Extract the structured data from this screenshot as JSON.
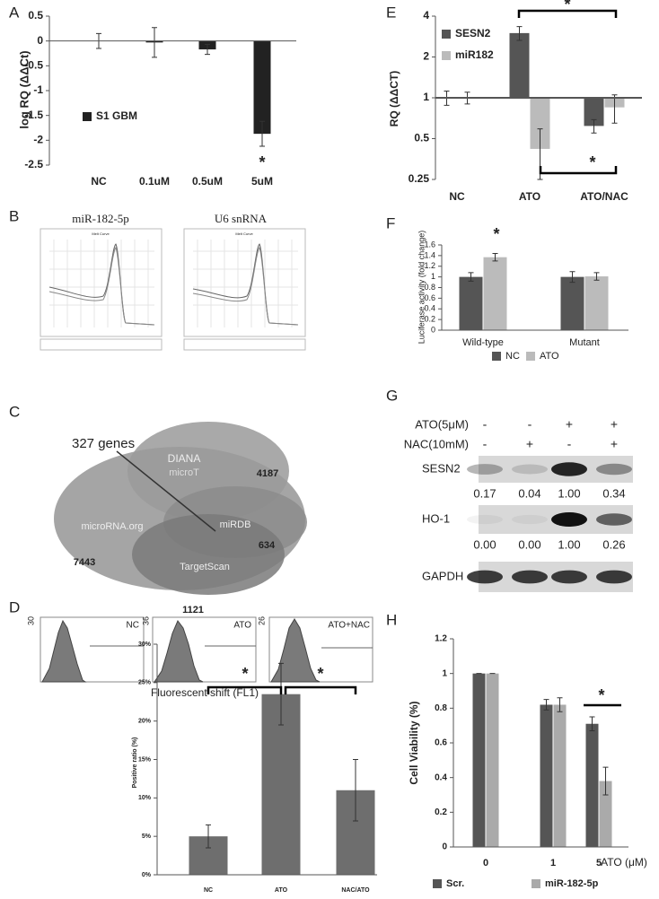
{
  "chart_data": [
    {
      "panel": "A",
      "type": "bar",
      "y_label": "log RQ (ΔΔCt)",
      "categories": [
        "NC",
        "0.1uM",
        "0.5uM",
        "5uM"
      ],
      "series": [
        {
          "name": "S1 GBM",
          "color": "#222222",
          "values": [
            0,
            -0.03,
            -0.17,
            -1.87
          ],
          "errors": [
            0.15,
            0.3,
            0.1,
            0.25
          ]
        }
      ],
      "ylim": [
        -2.5,
        0.5
      ],
      "yticks": [
        -2.5,
        -2,
        -1.5,
        -1,
        -0.5,
        0,
        0.5
      ],
      "annotations": [
        "*"
      ]
    },
    {
      "type": "bar",
      "y_label": "Positive ratio (%)",
      "categories": [
        "NC",
        "ATO",
        "NAC/ATO"
      ],
      "series": [
        {
          "color": "#6e6e6e",
          "values": [
            5,
            23.5,
            11
          ],
          "errors": [
            1.5,
            4,
            4
          ]
        }
      ],
      "ylim": [
        0,
        30
      ],
      "yticks": [
        {
          "value": 0,
          "label": "0%"
        },
        {
          "value": 5,
          "label": "5%"
        },
        {
          "value": 10,
          "label": "10%"
        },
        {
          "value": 15,
          "label": "15%"
        },
        {
          "value": 20,
          "label": "20%"
        },
        {
          "value": 25,
          "label": "25%"
        },
        {
          "value": 30,
          "label": "30%"
        }
      ],
      "annotations": [
        "*",
        "*"
      ]
    },
    {
      "panel": "E",
      "type": "bar",
      "y_label": "RQ (ΔΔCT)",
      "categories": [
        "NC",
        "ATO",
        "ATO/NAC"
      ],
      "log_scale": true,
      "series": [
        {
          "name": "SESN2",
          "color": "#555555",
          "values": [
            1.0,
            3.0,
            0.62
          ],
          "errors": [
            0.12,
            0.35,
            0.07
          ]
        },
        {
          "name": "miR182",
          "color": "#bbbbbb",
          "values": [
            1.0,
            0.42,
            0.85
          ],
          "errors": [
            0.1,
            0.17,
            0.2
          ]
        }
      ],
      "ylim": [
        0.25,
        4
      ],
      "yticks": [
        0.25,
        0.5,
        1,
        2,
        4
      ],
      "annotations": [
        "*",
        "*"
      ]
    },
    {
      "panel": "F",
      "type": "bar",
      "y_label": "Luciferase activity (fold change)",
      "categories": [
        "Wild-type",
        "Mutant"
      ],
      "series": [
        {
          "name": "NC",
          "color": "#555555",
          "values": [
            1.0,
            1.0
          ],
          "errors": [
            0.08,
            0.1
          ]
        },
        {
          "name": "ATO",
          "color": "#bbbbbb",
          "values": [
            1.37,
            1.01
          ],
          "errors": [
            0.07,
            0.07
          ]
        }
      ],
      "ylim": [
        0,
        1.6
      ],
      "yticks": [
        0,
        0.2,
        0.4,
        0.6,
        0.8,
        1,
        1.2,
        1.4,
        1.6
      ],
      "legend": "bottom",
      "annotations": [
        "*"
      ]
    },
    {
      "panel": "H",
      "type": "bar",
      "y_label": "Cell Viability (%)",
      "x_label": "ATO (μM)",
      "categories": [
        "0",
        "1",
        "5"
      ],
      "series": [
        {
          "name": "Scr.",
          "color": "#555555",
          "values": [
            1,
            0.82,
            0.71
          ],
          "errors": [
            0,
            0.03,
            0.04
          ]
        },
        {
          "name": "miR-182-5p",
          "color": "#aaaaaa",
          "values": [
            1,
            0.82,
            0.38
          ],
          "errors": [
            0,
            0.04,
            0.08
          ]
        }
      ],
      "ylim": [
        0,
        1.2
      ],
      "yticks": [
        0,
        0.2,
        0.4,
        0.6,
        0.8,
        1,
        1.2
      ],
      "legend": "bottom",
      "annotations": [
        "*"
      ]
    }
  ],
  "melt_curves": {
    "panel": "B",
    "plots": [
      {
        "title": "miR-182-5p",
        "chart_title": "Melt Curve"
      },
      {
        "title": "U6 snRNA",
        "chart_title": "Melt Curve"
      }
    ]
  },
  "venn": {
    "panel": "C",
    "callout": "327 genes",
    "sets": [
      {
        "name": "DIANA",
        "subname": "microT",
        "count": 4187
      },
      {
        "name": "microRNA.org",
        "count": 7443
      },
      {
        "name": "miRDB",
        "count": 634
      },
      {
        "name": "TargetScan",
        "count": 1121
      }
    ]
  },
  "flow_histograms": {
    "panel": "D",
    "x_label": "Fluorescent shift (FL1)",
    "plots": [
      {
        "label": "NC",
        "y_max": 30
      },
      {
        "label": "ATO",
        "y_max": 36
      },
      {
        "label": "ATO+NAC",
        "y_max": 26
      }
    ]
  },
  "western_blot": {
    "panel": "G",
    "conditions": [
      {
        "label": "ATO(5μM)",
        "signs": [
          "-",
          "-",
          "+",
          "+"
        ]
      },
      {
        "label": "NAC(10mM)",
        "signs": [
          "-",
          "+",
          "-",
          "+"
        ]
      }
    ],
    "bands": [
      {
        "label": "SESN2",
        "quantification": [
          "0.17",
          "0.04",
          "1.00",
          "0.34"
        ]
      },
      {
        "label": "HO-1",
        "quantification": [
          "0.00",
          "0.00",
          "1.00",
          "0.26"
        ]
      },
      {
        "label": "GAPDH"
      }
    ]
  }
}
